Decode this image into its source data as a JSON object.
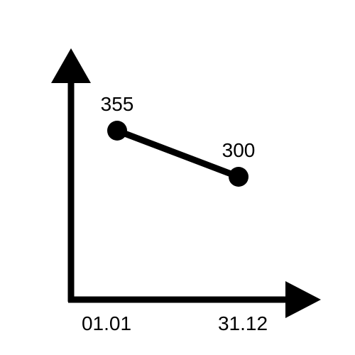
{
  "chart_data": {
    "type": "line",
    "x": [
      "01.01",
      "31.12"
    ],
    "series": [
      {
        "values": [
          355,
          300
        ]
      }
    ],
    "data_labels": [
      "355",
      "300"
    ],
    "xlabel": "",
    "ylabel": "",
    "grid": false,
    "legend": "none",
    "line_color": "#000000",
    "marker_color": "#000000",
    "axis_color": "#000000"
  }
}
